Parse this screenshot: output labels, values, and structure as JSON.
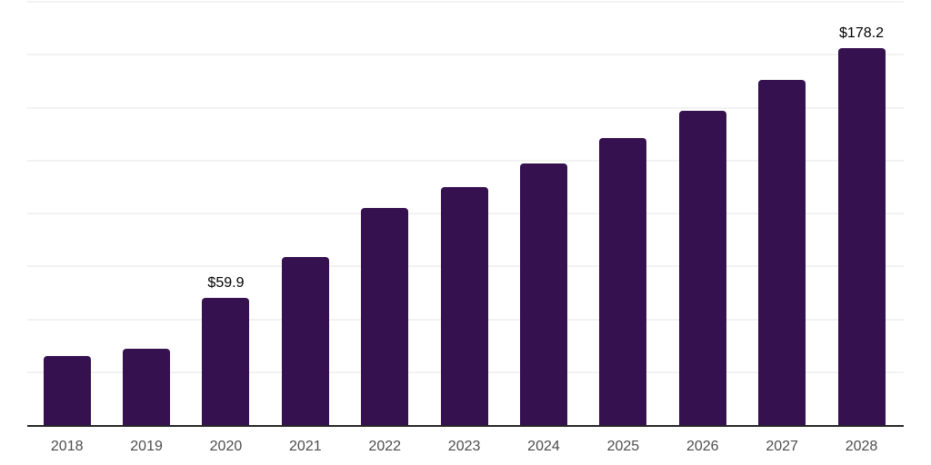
{
  "chart_data": {
    "type": "bar",
    "title": "",
    "xlabel": "",
    "ylabel": "",
    "categories": [
      "2018",
      "2019",
      "2020",
      "2021",
      "2022",
      "2023",
      "2024",
      "2025",
      "2026",
      "2027",
      "2028"
    ],
    "values": [
      32.6,
      36.2,
      59.9,
      79.4,
      102.7,
      112.4,
      123.7,
      135.7,
      148.6,
      162.9,
      178.2
    ],
    "bar_value_labels": [
      "",
      "",
      "$59.9",
      "",
      "",
      "",
      "",
      "",
      "",
      "",
      "$178.2"
    ],
    "ylim": [
      0,
      200
    ],
    "gridline_interval": 25,
    "grid": true,
    "legend": false,
    "y_axis_labels_visible": false
  },
  "style": {
    "bar_color": "#351150",
    "gridline_color": "#f2f2f2",
    "axis_line_color": "#262626",
    "tick_label_color": "#4d4d4d",
    "value_label_color": "#000000",
    "background_color": "#ffffff"
  }
}
